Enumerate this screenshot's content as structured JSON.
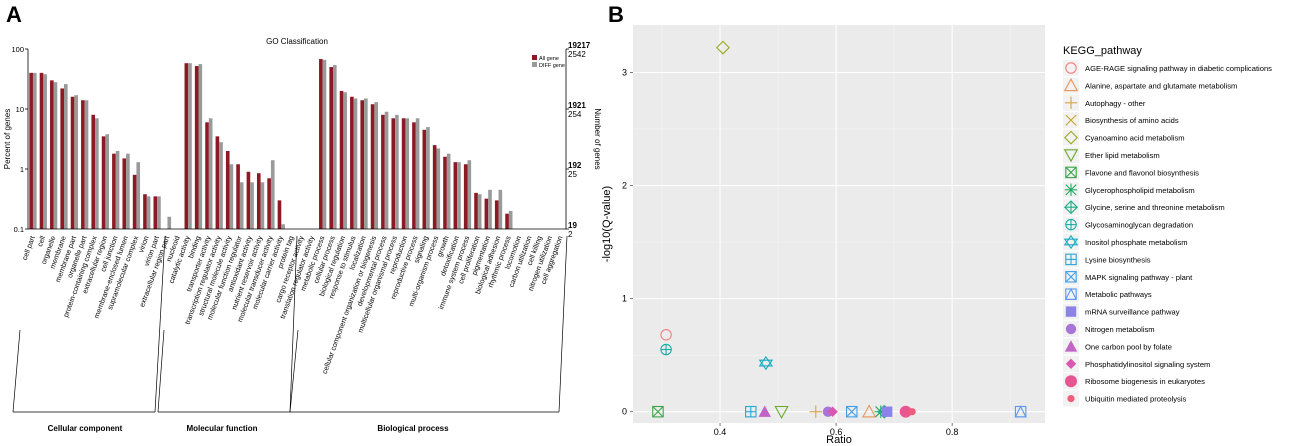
{
  "panels": {
    "a": "A",
    "b": "B"
  },
  "chart_data": [
    {
      "type": "bar",
      "title": "GO Classification",
      "ylabel": "Percent of genes",
      "ylabel_right": "Number of genes",
      "yscale": "log",
      "ylim": [
        0.1,
        100
      ],
      "yticks": [
        "100",
        "10",
        "1",
        "0.1"
      ],
      "right_axis": [
        {
          "all": "19217",
          "diff": "2542"
        },
        {
          "all": "1921",
          "diff": "254"
        },
        {
          "all": "192",
          "diff": "25"
        },
        {
          "all": "19",
          "diff": "2"
        }
      ],
      "legend": [
        "All gene",
        "DIFF gene"
      ],
      "colors": {
        "all": "#8b1a24",
        "diff": "#9a9a9a",
        "right_all": "#8b1a24",
        "right_diff": "#555555"
      },
      "categories": [
        "cell part",
        "cell",
        "organelle",
        "membrane",
        "membrane part",
        "organelle part",
        "protein-containing complex",
        "extracellular region",
        "cell junction",
        "membrane-enclosed lumen",
        "supramolecular complex",
        "virion",
        "virion part",
        "extracellular region part",
        "nucleoid",
        "catalytic activity",
        "binding",
        "transporter activity",
        "transcription regulator activity",
        "structural molecule activity",
        "molecular function regulator",
        "antioxidant activity",
        "nutrient reservoir activity",
        "molecular transducer activity",
        "molecular carrier activity",
        "protein tag",
        "cargo receptor activity",
        "translation regulator activity",
        "metabolic process",
        "cellular process",
        "biological regulation",
        "response to stimulus",
        "localization",
        "cellular component organization or biogenesis",
        "developmental process",
        "multicellular organismal process",
        "reproduction",
        "reproductive process",
        "signaling",
        "multi-organism process",
        "growth",
        "detoxification",
        "immune system process",
        "cell proliferation",
        "pigmentation",
        "biological adhesion",
        "rhythmic process",
        "locomotion",
        "carbon utilization",
        "cell killing",
        "nitrogen utilization",
        "cell aggregation"
      ],
      "series": [
        {
          "name": "All gene",
          "values": [
            40,
            40,
            30,
            22,
            16,
            14,
            8,
            3.5,
            1.8,
            1.5,
            0.8,
            0.38,
            0.35,
            0,
            0,
            58,
            52,
            6,
            3.5,
            2,
            1.2,
            0.9,
            0.85,
            0.7,
            0.3,
            0,
            0,
            0,
            68,
            50,
            20,
            16,
            14,
            12,
            8,
            7,
            7,
            6,
            4.5,
            2.5,
            1.6,
            1.3,
            1.2,
            0.4,
            0.32,
            0.3,
            0.18,
            0,
            0,
            0,
            0,
            0
          ]
        },
        {
          "name": "DIFF gene",
          "values": [
            40,
            38,
            28,
            26,
            17,
            14,
            7,
            3.8,
            2,
            1.8,
            1.3,
            0.35,
            0.35,
            0.16,
            0,
            58,
            56,
            7,
            2.8,
            1.2,
            0.6,
            0.6,
            0.6,
            1.4,
            0.12,
            0,
            0,
            0,
            66,
            54,
            19,
            15,
            15,
            13,
            9,
            8,
            7,
            7,
            5,
            2.2,
            1.8,
            1.3,
            1.4,
            0.38,
            0.45,
            0.45,
            0.2,
            0,
            0,
            0,
            0,
            0
          ]
        }
      ],
      "groups": [
        {
          "name": "Cellular component",
          "start": 0,
          "end": 14
        },
        {
          "name": "Molecular function",
          "start": 15,
          "end": 27
        },
        {
          "name": "Biological process",
          "start": 28,
          "end": 51
        }
      ]
    },
    {
      "type": "scatter",
      "xlabel": "Ratio",
      "ylabel": "-log10(Q-value)",
      "xlim": [
        0.25,
        0.96
      ],
      "ylim": [
        -0.1,
        3.42
      ],
      "xticks": [
        0.4,
        0.6,
        0.8
      ],
      "yticks": [
        0,
        1,
        2,
        3
      ],
      "xtick_labels": [
        "0.4",
        "0.6",
        "0.8"
      ],
      "ytick_labels": [
        "0",
        "1",
        "2",
        "3"
      ],
      "legend_title": "KEGG_pathway",
      "series": [
        {
          "name": "AGE-RAGE signaling pathway in diabetic complications",
          "shape": "circle-open",
          "color": "#f08080",
          "x": 0.307,
          "y": 0.68
        },
        {
          "name": "Alanine, aspartate and glutamate metabolism",
          "shape": "triangle-open",
          "color": "#e8955a",
          "x": 0.657,
          "y": 0.0
        },
        {
          "name": "Autophagy - other",
          "shape": "plus",
          "color": "#d9a441",
          "x": 0.565,
          "y": 0.0
        },
        {
          "name": "Biosynthesis of amino acids",
          "shape": "x",
          "color": "#c4a62a",
          "x": 0.677,
          "y": 0.0
        },
        {
          "name": "Cyanoamino acid metabolism",
          "shape": "diamond-open",
          "color": "#9aaa1e",
          "x": 0.405,
          "y": 3.22
        },
        {
          "name": "Ether lipid metabolism",
          "shape": "triangle-down-open",
          "color": "#6aaa2a",
          "x": 0.506,
          "y": 0.0
        },
        {
          "name": "Flavone and flavonol biosynthesis",
          "shape": "square-x",
          "color": "#3aa64a",
          "x": 0.293,
          "y": 0.0
        },
        {
          "name": "Glycerophospholipid metabolism",
          "shape": "asterisk",
          "color": "#1fad63",
          "x": 0.677,
          "y": 0.0
        },
        {
          "name": "Glycine, serine and threonine metabolism",
          "shape": "diamond-plus",
          "color": "#18ad86",
          "x": 0.683,
          "y": 0.0
        },
        {
          "name": "Glycosaminoglycan degradation",
          "shape": "circle-plus",
          "color": "#1aaba6",
          "x": 0.307,
          "y": 0.55
        },
        {
          "name": "Inositol phosphate metabolism",
          "shape": "star-david",
          "color": "#18a9c0",
          "x": 0.479,
          "y": 0.43
        },
        {
          "name": "Lysine biosynthesis",
          "shape": "square-plus",
          "color": "#2aa6d8",
          "x": 0.453,
          "y": 0.0
        },
        {
          "name": "MAPK signaling pathway - plant",
          "shape": "circle-x",
          "color": "#3f9ee6",
          "x": 0.627,
          "y": 0.0
        },
        {
          "name": "Metabolic pathways",
          "shape": "triangle-square",
          "color": "#5c98ec",
          "x": 0.918,
          "y": 0.0
        },
        {
          "name": "mRNA surveillance pathway",
          "shape": "square",
          "color": "#8b83e6",
          "x": 0.688,
          "y": 0.0
        },
        {
          "name": "Nitrogen metabolism",
          "shape": "circle",
          "color": "#a874d8",
          "x": 0.586,
          "y": 0.0
        },
        {
          "name": "One carbon pool by folate",
          "shape": "triangle",
          "color": "#c064c6",
          "x": 0.477,
          "y": 0.0
        },
        {
          "name": "Phosphatidylinositol signaling system",
          "shape": "diamond",
          "color": "#d858b0",
          "x": 0.594,
          "y": 0.0
        },
        {
          "name": "Ribosome biogenesis in eukaryotes",
          "shape": "circle-big",
          "color": "#e85590",
          "x": 0.72,
          "y": 0.0
        },
        {
          "name": "Ubiquitin mediated proteolysis",
          "shape": "circle-small",
          "color": "#ef5d7a",
          "x": 0.731,
          "y": 0.0
        }
      ]
    }
  ]
}
